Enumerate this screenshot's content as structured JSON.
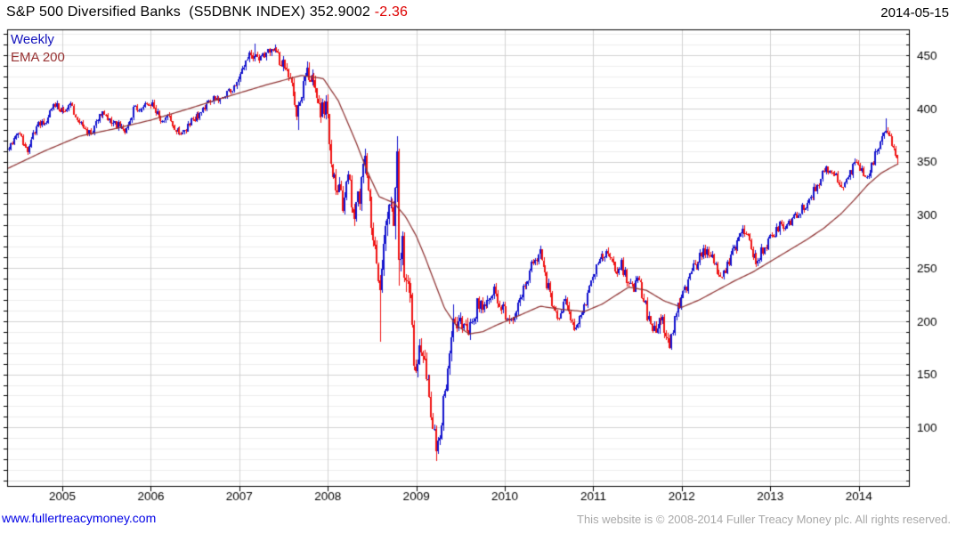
{
  "header": {
    "title": "S&P 500 Diversified Banks  (S5DBNK INDEX)",
    "last_price": "352.9002",
    "change": "-2.36",
    "date": "2014-05-15"
  },
  "legend": {
    "series_label": "Weekly",
    "overlay_label": "EMA 200"
  },
  "footer": {
    "site_link": "www.fullertreacymoney.com",
    "copyright": "This website is © 2008-2014 Fuller Treacy Money plc. All rights reserved."
  },
  "colors": {
    "up_candle": "#1212cd",
    "down_candle": "#ef1212",
    "ema_line": "#8f3434",
    "grid_minor": "#ededed",
    "grid_major": "#d2d2d2",
    "axis": "#000000",
    "label": "#000000",
    "change_text": "#dd0000",
    "legend_weekly": "#1111bb",
    "legend_ema": "#993333"
  },
  "chart_data": {
    "type": "candlestick",
    "timeframe": "weekly",
    "title": "S&P 500 Diversified Banks (S5DBNK INDEX)",
    "symbol": "S5DBNK INDEX",
    "last_close": 352.9002,
    "change": -2.36,
    "as_of_date": "2014-05-15",
    "x_ticks": [
      2005,
      2006,
      2007,
      2008,
      2009,
      2010,
      2011,
      2012,
      2013,
      2014
    ],
    "y_ticks": [
      100,
      150,
      200,
      250,
      300,
      350,
      400,
      450
    ],
    "x_range": [
      2004.376,
      2014.577
    ],
    "y_range": [
      44.2,
      474.3
    ],
    "grid": {
      "minor_step": 10,
      "major_step": 50,
      "vertical_at_years": true
    },
    "legend_position": "top-left",
    "series": [
      {
        "name": "Weekly price",
        "style": "candle",
        "close_anchors": [
          [
            2004.38,
            362
          ],
          [
            2004.44,
            370
          ],
          [
            2004.5,
            380
          ],
          [
            2004.56,
            366
          ],
          [
            2004.62,
            360
          ],
          [
            2004.68,
            378
          ],
          [
            2004.74,
            388
          ],
          [
            2004.8,
            384
          ],
          [
            2004.86,
            398
          ],
          [
            2004.92,
            405
          ],
          [
            2004.98,
            400
          ],
          [
            2005.04,
            398
          ],
          [
            2005.1,
            403
          ],
          [
            2005.16,
            390
          ],
          [
            2005.22,
            382
          ],
          [
            2005.28,
            377
          ],
          [
            2005.34,
            380
          ],
          [
            2005.4,
            392
          ],
          [
            2005.46,
            398
          ],
          [
            2005.52,
            390
          ],
          [
            2005.58,
            386
          ],
          [
            2005.64,
            384
          ],
          [
            2005.7,
            379
          ],
          [
            2005.76,
            388
          ],
          [
            2005.82,
            403
          ],
          [
            2005.88,
            398
          ],
          [
            2005.94,
            402
          ],
          [
            2006.0,
            404
          ],
          [
            2006.06,
            398
          ],
          [
            2006.12,
            388
          ],
          [
            2006.2,
            393
          ],
          [
            2006.28,
            381
          ],
          [
            2006.36,
            376
          ],
          [
            2006.44,
            388
          ],
          [
            2006.52,
            392
          ],
          [
            2006.6,
            401
          ],
          [
            2006.68,
            409
          ],
          [
            2006.76,
            407
          ],
          [
            2006.84,
            413
          ],
          [
            2006.92,
            420
          ],
          [
            2007.0,
            428
          ],
          [
            2007.06,
            442
          ],
          [
            2007.12,
            450
          ],
          [
            2007.18,
            452
          ],
          [
            2007.24,
            446
          ],
          [
            2007.3,
            452
          ],
          [
            2007.36,
            455
          ],
          [
            2007.42,
            450
          ],
          [
            2007.48,
            445
          ],
          [
            2007.54,
            438
          ],
          [
            2007.6,
            420
          ],
          [
            2007.65,
            395
          ],
          [
            2007.7,
            410
          ],
          [
            2007.76,
            430
          ],
          [
            2007.82,
            435
          ],
          [
            2007.87,
            415
          ],
          [
            2007.92,
            398
          ],
          [
            2007.98,
            404
          ],
          [
            2008.02,
            365
          ],
          [
            2008.06,
            340
          ],
          [
            2008.1,
            318
          ],
          [
            2008.14,
            330
          ],
          [
            2008.18,
            305
          ],
          [
            2008.22,
            340
          ],
          [
            2008.26,
            318
          ],
          [
            2008.3,
            305
          ],
          [
            2008.34,
            312
          ],
          [
            2008.38,
            330
          ],
          [
            2008.42,
            348
          ],
          [
            2008.46,
            322
          ],
          [
            2008.5,
            290
          ],
          [
            2008.54,
            255
          ],
          [
            2008.58,
            232
          ],
          [
            2008.62,
            255
          ],
          [
            2008.66,
            285
          ],
          [
            2008.7,
            300
          ],
          [
            2008.74,
            292
          ],
          [
            2008.785,
            358
          ],
          [
            2008.81,
            242
          ],
          [
            2008.84,
            272
          ],
          [
            2008.87,
            246
          ],
          [
            2008.9,
            224
          ],
          [
            2008.93,
            238
          ],
          [
            2008.95,
            195
          ],
          [
            2008.99,
            148
          ],
          [
            2009.03,
            172
          ],
          [
            2009.07,
            160
          ],
          [
            2009.11,
            152
          ],
          [
            2009.15,
            128
          ],
          [
            2009.19,
            103
          ],
          [
            2009.23,
            80
          ],
          [
            2009.27,
            98
          ],
          [
            2009.31,
            128
          ],
          [
            2009.35,
            152
          ],
          [
            2009.39,
            185
          ],
          [
            2009.42,
            205
          ],
          [
            2009.46,
            186
          ],
          [
            2009.52,
            200
          ],
          [
            2009.58,
            183
          ],
          [
            2009.64,
            200
          ],
          [
            2009.7,
            220
          ],
          [
            2009.76,
            210
          ],
          [
            2009.82,
            222
          ],
          [
            2009.88,
            228
          ],
          [
            2009.94,
            217
          ],
          [
            2010.0,
            209
          ],
          [
            2010.05,
            200
          ],
          [
            2010.1,
            205
          ],
          [
            2010.16,
            220
          ],
          [
            2010.22,
            233
          ],
          [
            2010.28,
            246
          ],
          [
            2010.34,
            258
          ],
          [
            2010.4,
            263
          ],
          [
            2010.45,
            247
          ],
          [
            2010.5,
            228
          ],
          [
            2010.55,
            214
          ],
          [
            2010.6,
            196
          ],
          [
            2010.65,
            212
          ],
          [
            2010.7,
            218
          ],
          [
            2010.75,
            200
          ],
          [
            2010.8,
            194
          ],
          [
            2010.85,
            208
          ],
          [
            2010.9,
            215
          ],
          [
            2010.96,
            230
          ],
          [
            2011.02,
            247
          ],
          [
            2011.08,
            258
          ],
          [
            2011.14,
            265
          ],
          [
            2011.2,
            257
          ],
          [
            2011.26,
            248
          ],
          [
            2011.32,
            254
          ],
          [
            2011.38,
            242
          ],
          [
            2011.44,
            232
          ],
          [
            2011.5,
            237
          ],
          [
            2011.56,
            226
          ],
          [
            2011.61,
            204
          ],
          [
            2011.66,
            197
          ],
          [
            2011.71,
            188
          ],
          [
            2011.76,
            204
          ],
          [
            2011.81,
            193
          ],
          [
            2011.86,
            179
          ],
          [
            2011.91,
            198
          ],
          [
            2011.96,
            212
          ],
          [
            2012.02,
            225
          ],
          [
            2012.08,
            238
          ],
          [
            2012.14,
            250
          ],
          [
            2012.2,
            260
          ],
          [
            2012.26,
            268
          ],
          [
            2012.31,
            262
          ],
          [
            2012.36,
            255
          ],
          [
            2012.41,
            247
          ],
          [
            2012.46,
            241
          ],
          [
            2012.52,
            253
          ],
          [
            2012.58,
            266
          ],
          [
            2012.64,
            277
          ],
          [
            2012.7,
            287
          ],
          [
            2012.75,
            282
          ],
          [
            2012.8,
            262
          ],
          [
            2012.85,
            257
          ],
          [
            2012.9,
            265
          ],
          [
            2012.96,
            272
          ],
          [
            2013.02,
            281
          ],
          [
            2013.1,
            289
          ],
          [
            2013.2,
            292
          ],
          [
            2013.3,
            299
          ],
          [
            2013.4,
            310
          ],
          [
            2013.5,
            323
          ],
          [
            2013.58,
            336
          ],
          [
            2013.66,
            345
          ],
          [
            2013.74,
            336
          ],
          [
            2013.82,
            324
          ],
          [
            2013.9,
            339
          ],
          [
            2013.97,
            351
          ],
          [
            2014.03,
            344
          ],
          [
            2014.1,
            330
          ],
          [
            2014.17,
            352
          ],
          [
            2014.24,
            367
          ],
          [
            2014.31,
            383
          ],
          [
            2014.36,
            373
          ],
          [
            2014.41,
            360
          ],
          [
            2014.45,
            352.9
          ]
        ],
        "volatility_anchors": [
          [
            2004.38,
            0.011
          ],
          [
            2006.5,
            0.011
          ],
          [
            2007.3,
            0.012
          ],
          [
            2007.7,
            0.022
          ],
          [
            2008.0,
            0.028
          ],
          [
            2008.45,
            0.045
          ],
          [
            2008.8,
            0.075
          ],
          [
            2009.1,
            0.075
          ],
          [
            2009.25,
            0.085
          ],
          [
            2009.5,
            0.06
          ],
          [
            2009.8,
            0.035
          ],
          [
            2010.2,
            0.025
          ],
          [
            2010.6,
            0.035
          ],
          [
            2011.0,
            0.022
          ],
          [
            2011.3,
            0.025
          ],
          [
            2011.65,
            0.045
          ],
          [
            2011.95,
            0.035
          ],
          [
            2012.3,
            0.025
          ],
          [
            2012.8,
            0.022
          ],
          [
            2013.3,
            0.016
          ],
          [
            2013.8,
            0.015
          ],
          [
            2014.2,
            0.016
          ],
          [
            2014.45,
            0.015
          ]
        ],
        "wick_events": [
          {
            "t": 2007.17,
            "high": 461
          },
          {
            "t": 2007.67,
            "low": 379
          },
          {
            "t": 2008.59,
            "low": 181
          },
          {
            "t": 2008.785,
            "high": 373
          },
          {
            "t": 2008.81,
            "low": 233
          },
          {
            "t": 2009.23,
            "low": 68
          },
          {
            "t": 2009.42,
            "high": 216
          },
          {
            "t": 2010.4,
            "high": 266
          },
          {
            "t": 2011.86,
            "low": 176
          },
          {
            "t": 2014.31,
            "high": 391
          }
        ]
      },
      {
        "name": "EMA 200",
        "style": "line",
        "points": [
          [
            2004.37,
            343
          ],
          [
            2004.8,
            360
          ],
          [
            2005.2,
            374
          ],
          [
            2005.6,
            381
          ],
          [
            2006.0,
            389
          ],
          [
            2006.4,
            399
          ],
          [
            2006.9,
            412
          ],
          [
            2007.3,
            422
          ],
          [
            2007.7,
            431
          ],
          [
            2007.95,
            428
          ],
          [
            2008.12,
            407
          ],
          [
            2008.32,
            368
          ],
          [
            2008.45,
            340
          ],
          [
            2008.58,
            317
          ],
          [
            2008.75,
            311
          ],
          [
            2008.88,
            298
          ],
          [
            2009.0,
            280
          ],
          [
            2009.1,
            260
          ],
          [
            2009.2,
            238
          ],
          [
            2009.32,
            212
          ],
          [
            2009.45,
            196
          ],
          [
            2009.6,
            188
          ],
          [
            2009.75,
            190
          ],
          [
            2009.9,
            196
          ],
          [
            2010.1,
            203
          ],
          [
            2010.4,
            214
          ],
          [
            2010.65,
            211
          ],
          [
            2010.9,
            209
          ],
          [
            2011.1,
            216
          ],
          [
            2011.4,
            232
          ],
          [
            2011.6,
            229
          ],
          [
            2011.8,
            219
          ],
          [
            2012.0,
            213
          ],
          [
            2012.2,
            220
          ],
          [
            2012.4,
            229
          ],
          [
            2012.6,
            238
          ],
          [
            2012.8,
            246
          ],
          [
            2013.0,
            256
          ],
          [
            2013.2,
            266
          ],
          [
            2013.4,
            276
          ],
          [
            2013.6,
            287
          ],
          [
            2013.8,
            301
          ],
          [
            2013.95,
            314
          ],
          [
            2014.1,
            328
          ],
          [
            2014.25,
            339
          ],
          [
            2014.4,
            346
          ],
          [
            2014.45,
            348
          ]
        ]
      }
    ]
  }
}
